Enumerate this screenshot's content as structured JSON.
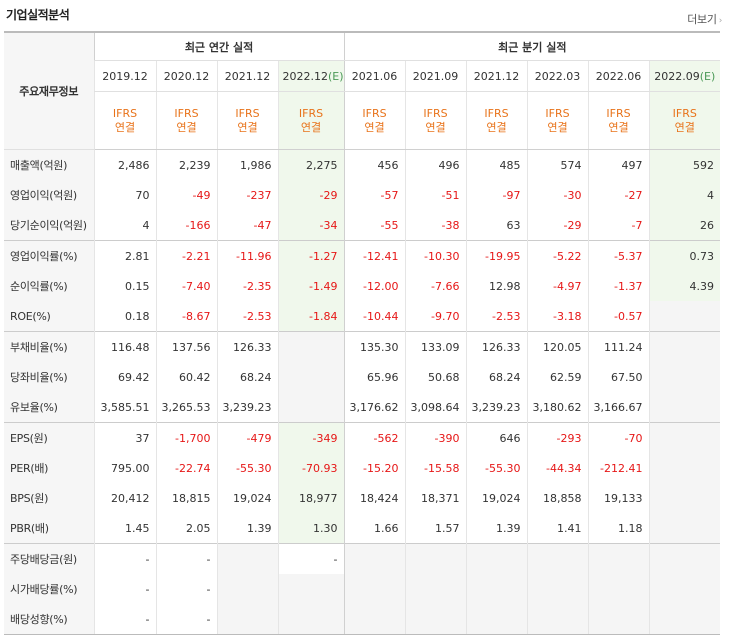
{
  "header": {
    "title": "기업실적분석",
    "more_label": "더보기",
    "more_arrow": "›"
  },
  "table": {
    "label_header": "주요재무정보",
    "groups": [
      {
        "label": "최근 연간 실적"
      },
      {
        "label": "최근 분기 실적"
      }
    ],
    "periods": [
      {
        "label": "2019.12",
        "estimate": false
      },
      {
        "label": "2020.12",
        "estimate": false
      },
      {
        "label": "2021.12",
        "estimate": false
      },
      {
        "label": "2022.12",
        "estimate": true
      },
      {
        "label": "2021.06",
        "estimate": false
      },
      {
        "label": "2021.09",
        "estimate": false
      },
      {
        "label": "2021.12",
        "estimate": false
      },
      {
        "label": "2022.03",
        "estimate": false
      },
      {
        "label": "2022.06",
        "estimate": false
      },
      {
        "label": "2022.09",
        "estimate": true
      }
    ],
    "estimate_mark": "(E)",
    "basis_line1": "IFRS",
    "basis_line2": "연결",
    "rows": [
      {
        "label": "매출액(억원)",
        "values": [
          "2,486",
          "2,239",
          "1,986",
          "2,275",
          "456",
          "496",
          "485",
          "574",
          "497",
          "592"
        ]
      },
      {
        "label": "영업이익(억원)",
        "values": [
          "70",
          "-49",
          "-237",
          "-29",
          "-57",
          "-51",
          "-97",
          "-30",
          "-27",
          "4"
        ]
      },
      {
        "label": "당기순이익(억원)",
        "values": [
          "4",
          "-166",
          "-47",
          "-34",
          "-55",
          "-38",
          "63",
          "-29",
          "-7",
          "26"
        ]
      },
      {
        "label": "영업이익률(%)",
        "values": [
          "2.81",
          "-2.21",
          "-11.96",
          "-1.27",
          "-12.41",
          "-10.30",
          "-19.95",
          "-5.22",
          "-5.37",
          "0.73"
        ]
      },
      {
        "label": "순이익률(%)",
        "values": [
          "0.15",
          "-7.40",
          "-2.35",
          "-1.49",
          "-12.00",
          "-7.66",
          "12.98",
          "-4.97",
          "-1.37",
          "4.39"
        ]
      },
      {
        "label": "ROE(%)",
        "values": [
          "0.18",
          "-8.67",
          "-2.53",
          "-1.84",
          "-10.44",
          "-9.70",
          "-2.53",
          "-3.18",
          "-0.57",
          ""
        ]
      },
      {
        "label": "부채비율(%)",
        "values": [
          "116.48",
          "137.56",
          "126.33",
          "",
          "135.30",
          "133.09",
          "126.33",
          "120.05",
          "111.24",
          ""
        ]
      },
      {
        "label": "당좌비율(%)",
        "values": [
          "69.42",
          "60.42",
          "68.24",
          "",
          "65.96",
          "50.68",
          "68.24",
          "62.59",
          "67.50",
          ""
        ]
      },
      {
        "label": "유보율(%)",
        "values": [
          "3,585.51",
          "3,265.53",
          "3,239.23",
          "",
          "3,176.62",
          "3,098.64",
          "3,239.23",
          "3,180.62",
          "3,166.67",
          ""
        ]
      },
      {
        "label": "EPS(원)",
        "values": [
          "37",
          "-1,700",
          "-479",
          "-349",
          "-562",
          "-390",
          "646",
          "-293",
          "-70",
          ""
        ]
      },
      {
        "label": "PER(배)",
        "values": [
          "795.00",
          "-22.74",
          "-55.30",
          "-70.93",
          "-15.20",
          "-15.58",
          "-55.30",
          "-44.34",
          "-212.41",
          ""
        ]
      },
      {
        "label": "BPS(원)",
        "values": [
          "20,412",
          "18,815",
          "19,024",
          "18,977",
          "18,424",
          "18,371",
          "19,024",
          "18,858",
          "19,133",
          ""
        ]
      },
      {
        "label": "PBR(배)",
        "values": [
          "1.45",
          "2.05",
          "1.39",
          "1.30",
          "1.66",
          "1.57",
          "1.39",
          "1.41",
          "1.18",
          ""
        ]
      },
      {
        "label": "주당배당금(원)",
        "values": [
          "-",
          "-",
          "",
          "-",
          "",
          "",
          "",
          "",
          "",
          ""
        ]
      },
      {
        "label": "시가배당률(%)",
        "values": [
          "-",
          "-",
          "",
          "",
          "",
          "",
          "",
          "",
          "",
          ""
        ]
      },
      {
        "label": "배당성향(%)",
        "values": [
          "-",
          "-",
          "",
          "",
          "",
          "",
          "",
          "",
          "",
          ""
        ]
      }
    ]
  }
}
